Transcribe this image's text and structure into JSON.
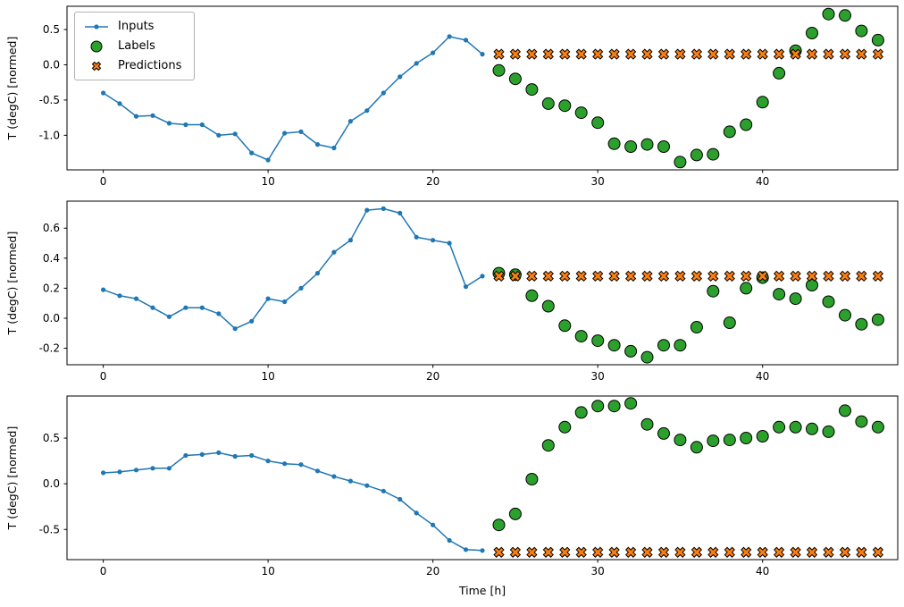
{
  "figure": {
    "background": "#ffffff",
    "xlabel": "Time [h]",
    "ylabel": "T (degC) [normed]",
    "legend": {
      "position": "upper-left",
      "entries": [
        {
          "label": "Inputs",
          "marker": "line-dot",
          "color": "#1f77b4"
        },
        {
          "label": "Labels",
          "marker": "circle",
          "color": "#2ca02c"
        },
        {
          "label": "Predictions",
          "marker": "x",
          "color": "#ff7f0e"
        }
      ]
    }
  },
  "chart_data": [
    {
      "type": "line",
      "title": "",
      "xlabel": "",
      "ylabel": "T (degC) [normed]",
      "xlim": [
        -2.2,
        48.2
      ],
      "ylim": [
        -1.49,
        0.83
      ],
      "xticks": [
        0,
        10,
        20,
        30,
        40
      ],
      "xtick_labels": [
        "0",
        "10",
        "20",
        "30",
        "40"
      ],
      "yticks": [
        0.5,
        0.0,
        -0.5,
        -1.0
      ],
      "ytick_labels": [
        "0.5",
        "0.0",
        "-0.5",
        "-1.0"
      ],
      "grid": false,
      "series": [
        {
          "name": "Inputs",
          "marker": "line-dot",
          "color": "#1f77b4",
          "x_start": 0,
          "step": 1,
          "values": [
            -0.4,
            -0.55,
            -0.73,
            -0.72,
            -0.83,
            -0.85,
            -0.85,
            -1.0,
            -0.98,
            -1.25,
            -1.35,
            -0.97,
            -0.95,
            -1.13,
            -1.18,
            -0.8,
            -0.65,
            -0.4,
            -0.17,
            0.02,
            0.17,
            0.4,
            0.35,
            0.15
          ]
        },
        {
          "name": "Labels",
          "marker": "circle",
          "color": "#2ca02c",
          "x_start": 24,
          "step": 1,
          "values": [
            -0.08,
            -0.2,
            -0.35,
            -0.55,
            -0.58,
            -0.68,
            -0.82,
            -1.12,
            -1.16,
            -1.13,
            -1.16,
            -1.38,
            -1.28,
            -1.27,
            -0.95,
            -0.85,
            -0.53,
            -0.12,
            0.2,
            0.45,
            0.72,
            0.7,
            0.48,
            0.35
          ]
        },
        {
          "name": "Predictions",
          "marker": "x",
          "color": "#ff7f0e",
          "x_start": 24,
          "step": 1,
          "values": [
            0.15,
            0.15,
            0.15,
            0.15,
            0.15,
            0.15,
            0.15,
            0.15,
            0.15,
            0.15,
            0.15,
            0.15,
            0.15,
            0.15,
            0.15,
            0.15,
            0.15,
            0.15,
            0.15,
            0.15,
            0.15,
            0.15,
            0.15,
            0.15
          ]
        }
      ]
    },
    {
      "type": "line",
      "title": "",
      "xlabel": "",
      "ylabel": "T (degC) [normed]",
      "xlim": [
        -2.2,
        48.2
      ],
      "ylim": [
        -0.31,
        0.78
      ],
      "xticks": [
        0,
        10,
        20,
        30,
        40
      ],
      "xtick_labels": [
        "0",
        "10",
        "20",
        "30",
        "40"
      ],
      "yticks": [
        0.6,
        0.4,
        0.2,
        0.0,
        -0.2
      ],
      "ytick_labels": [
        "0.6",
        "0.4",
        "0.2",
        "0.0",
        "-0.2"
      ],
      "grid": false,
      "series": [
        {
          "name": "Inputs",
          "marker": "line-dot",
          "color": "#1f77b4",
          "x_start": 0,
          "step": 1,
          "values": [
            0.19,
            0.15,
            0.13,
            0.07,
            0.01,
            0.07,
            0.07,
            0.03,
            -0.07,
            -0.02,
            0.13,
            0.11,
            0.2,
            0.3,
            0.44,
            0.52,
            0.72,
            0.73,
            0.7,
            0.54,
            0.52,
            0.5,
            0.21,
            0.28
          ]
        },
        {
          "name": "Labels",
          "marker": "circle",
          "color": "#2ca02c",
          "x_start": 24,
          "step": 1,
          "values": [
            0.3,
            0.29,
            0.15,
            0.08,
            -0.05,
            -0.12,
            -0.15,
            -0.18,
            -0.22,
            -0.26,
            -0.18,
            -0.18,
            -0.06,
            0.18,
            -0.03,
            0.2,
            0.27,
            0.16,
            0.13,
            0.22,
            0.11,
            0.02,
            -0.04,
            -0.01
          ]
        },
        {
          "name": "Predictions",
          "marker": "x",
          "color": "#ff7f0e",
          "x_start": 24,
          "step": 1,
          "values": [
            0.28,
            0.28,
            0.28,
            0.28,
            0.28,
            0.28,
            0.28,
            0.28,
            0.28,
            0.28,
            0.28,
            0.28,
            0.28,
            0.28,
            0.28,
            0.28,
            0.28,
            0.28,
            0.28,
            0.28,
            0.28,
            0.28,
            0.28,
            0.28
          ]
        }
      ]
    },
    {
      "type": "line",
      "title": "",
      "xlabel": "Time [h]",
      "ylabel": "T (degC) [normed]",
      "xlim": [
        -2.2,
        48.2
      ],
      "ylim": [
        -0.83,
        0.96
      ],
      "xticks": [
        0,
        10,
        20,
        30,
        40
      ],
      "xtick_labels": [
        "0",
        "10",
        "20",
        "30",
        "40"
      ],
      "yticks": [
        0.5,
        0.0,
        -0.5
      ],
      "ytick_labels": [
        "0.5",
        "0.0",
        "-0.5"
      ],
      "grid": false,
      "series": [
        {
          "name": "Inputs",
          "marker": "line-dot",
          "color": "#1f77b4",
          "x_start": 0,
          "step": 1,
          "values": [
            0.12,
            0.13,
            0.15,
            0.17,
            0.17,
            0.31,
            0.32,
            0.34,
            0.3,
            0.31,
            0.25,
            0.22,
            0.21,
            0.14,
            0.08,
            0.03,
            -0.02,
            -0.08,
            -0.17,
            -0.32,
            -0.45,
            -0.62,
            -0.72,
            -0.73
          ]
        },
        {
          "name": "Labels",
          "marker": "circle",
          "color": "#2ca02c",
          "x_start": 24,
          "step": 1,
          "values": [
            -0.45,
            -0.33,
            0.05,
            0.42,
            0.62,
            0.78,
            0.85,
            0.85,
            0.88,
            0.65,
            0.55,
            0.48,
            0.4,
            0.47,
            0.48,
            0.5,
            0.52,
            0.62,
            0.62,
            0.6,
            0.57,
            0.8,
            0.68,
            0.62
          ]
        },
        {
          "name": "Predictions",
          "marker": "x",
          "color": "#ff7f0e",
          "x_start": 24,
          "step": 1,
          "values": [
            -0.75,
            -0.75,
            -0.75,
            -0.75,
            -0.75,
            -0.75,
            -0.75,
            -0.75,
            -0.75,
            -0.75,
            -0.75,
            -0.75,
            -0.75,
            -0.75,
            -0.75,
            -0.75,
            -0.75,
            -0.75,
            -0.75,
            -0.75,
            -0.75,
            -0.75,
            -0.75,
            -0.75
          ]
        }
      ]
    }
  ]
}
